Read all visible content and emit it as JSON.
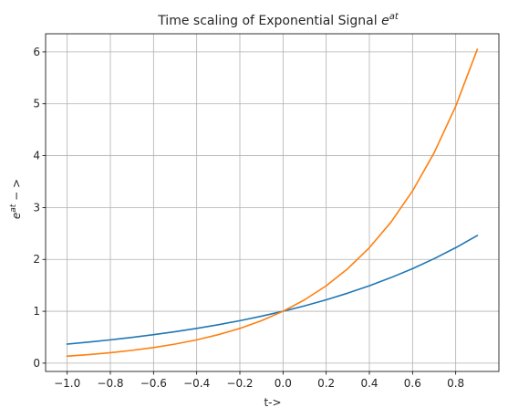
{
  "chart_data": {
    "type": "line",
    "title_prefix": "Time scaling of Exponential Signal ",
    "title_base": "e",
    "title_sup": "at",
    "xlabel": "t->",
    "ylabel_base": "e",
    "ylabel_sup": "at",
    "ylabel_suffix": " − >",
    "xlim": [
      -1.1,
      1.0
    ],
    "ylim": [
      -0.16,
      6.35
    ],
    "xticks": [
      -1.0,
      -0.8,
      -0.6,
      -0.4,
      -0.2,
      0.0,
      0.2,
      0.4,
      0.6,
      0.8
    ],
    "xtick_labels": [
      "−1.0",
      "−0.8",
      "−0.6",
      "−0.4",
      "−0.2",
      "0.0",
      "0.2",
      "0.4",
      "0.6",
      "0.8"
    ],
    "yticks": [
      0,
      1,
      2,
      3,
      4,
      5,
      6
    ],
    "ytick_labels": [
      "0",
      "1",
      "2",
      "3",
      "4",
      "5",
      "6"
    ],
    "grid": true,
    "x": [
      -1.0,
      -0.9,
      -0.8,
      -0.7,
      -0.6,
      -0.5,
      -0.4,
      -0.3,
      -0.2,
      -0.1,
      0.0,
      0.1,
      0.2,
      0.3,
      0.4,
      0.5,
      0.6,
      0.7,
      0.8,
      0.9
    ],
    "series": [
      {
        "color": "#1f77b4",
        "values": [
          0.368,
          0.407,
          0.449,
          0.497,
          0.549,
          0.607,
          0.67,
          0.741,
          0.819,
          0.905,
          1.0,
          1.105,
          1.221,
          1.35,
          1.492,
          1.649,
          1.822,
          2.014,
          2.226,
          2.46
        ]
      },
      {
        "color": "#ff7f0e",
        "values": [
          0.135,
          0.165,
          0.202,
          0.247,
          0.301,
          0.368,
          0.449,
          0.549,
          0.67,
          0.819,
          1.0,
          1.221,
          1.492,
          1.822,
          2.226,
          2.718,
          3.32,
          4.055,
          4.953,
          6.05
        ]
      }
    ]
  }
}
